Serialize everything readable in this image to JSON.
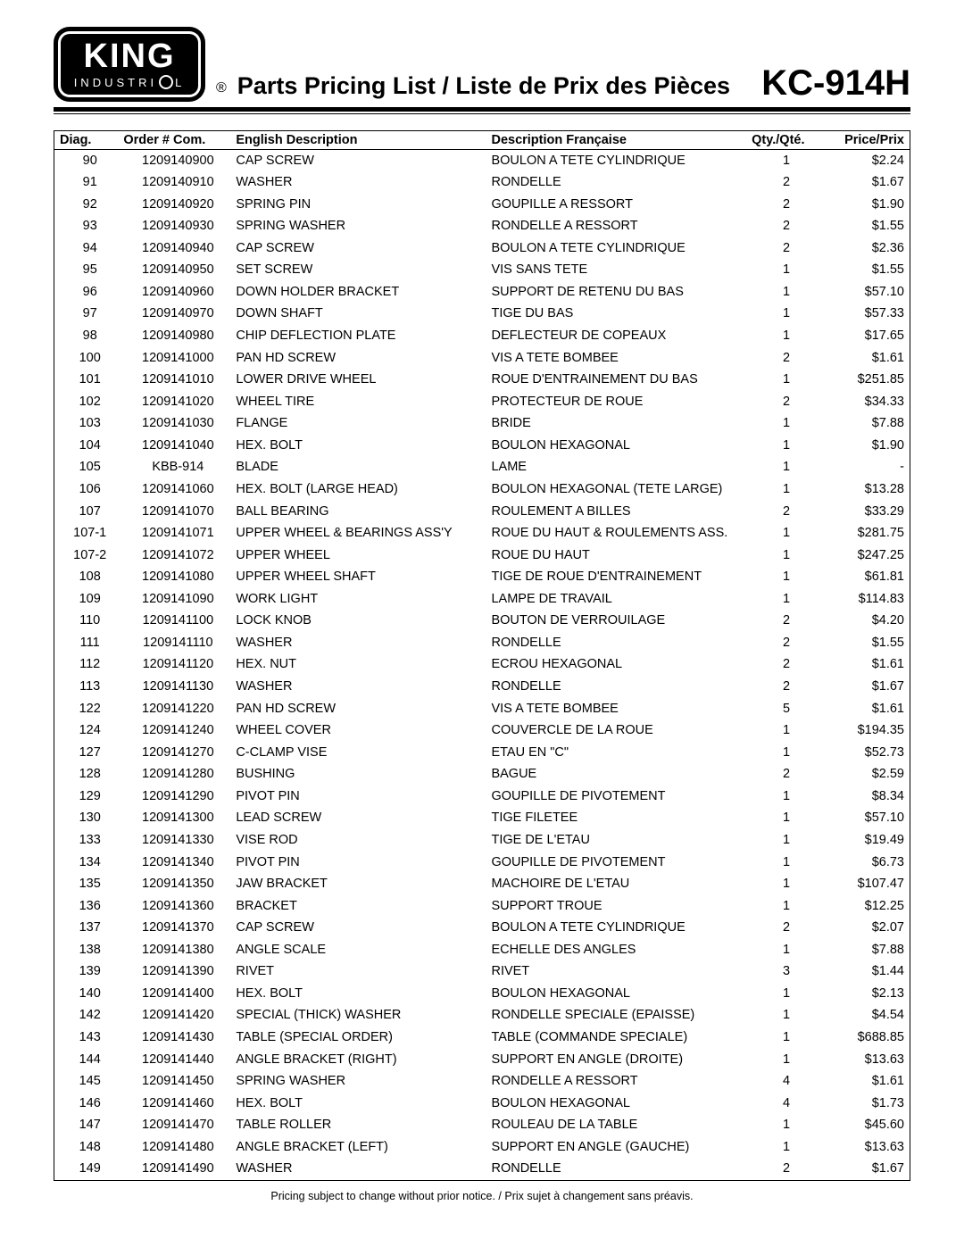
{
  "logo": {
    "main": "KING",
    "sub_left": "INDUSTRI",
    "sub_right": "L"
  },
  "reg": "®",
  "title": "Parts Pricing List / Liste de Prix des Pièces",
  "model": "KC-914H",
  "columns": {
    "diag": "Diag.",
    "order": "Order # Com.",
    "eng": "English Description",
    "fr": "Description Française",
    "qty": "Qty./Qté.",
    "price": "Price/Prix"
  },
  "rows": [
    {
      "diag": "90",
      "order": "1209140900",
      "eng": "CAP SCREW",
      "fr": "BOULON A TETE CYLINDRIQUE",
      "qty": "1",
      "price": "$2.24"
    },
    {
      "diag": "91",
      "order": "1209140910",
      "eng": "WASHER",
      "fr": "RONDELLE",
      "qty": "2",
      "price": "$1.67"
    },
    {
      "diag": "92",
      "order": "1209140920",
      "eng": "SPRING PIN",
      "fr": "GOUPILLE A RESSORT",
      "qty": "2",
      "price": "$1.90"
    },
    {
      "diag": "93",
      "order": "1209140930",
      "eng": "SPRING WASHER",
      "fr": "RONDELLE A RESSORT",
      "qty": "2",
      "price": "$1.55"
    },
    {
      "diag": "94",
      "order": "1209140940",
      "eng": "CAP SCREW",
      "fr": "BOULON A TETE CYLINDRIQUE",
      "qty": "2",
      "price": "$2.36"
    },
    {
      "diag": "95",
      "order": "1209140950",
      "eng": "SET SCREW",
      "fr": "VIS SANS TETE",
      "qty": "1",
      "price": "$1.55"
    },
    {
      "diag": "96",
      "order": "1209140960",
      "eng": "DOWN HOLDER BRACKET",
      "fr": "SUPPORT DE RETENU DU BAS",
      "qty": "1",
      "price": "$57.10"
    },
    {
      "diag": "97",
      "order": "1209140970",
      "eng": "DOWN SHAFT",
      "fr": "TIGE DU BAS",
      "qty": "1",
      "price": "$57.33"
    },
    {
      "diag": "98",
      "order": "1209140980",
      "eng": "CHIP DEFLECTION PLATE",
      "fr": "DEFLECTEUR DE COPEAUX",
      "qty": "1",
      "price": "$17.65"
    },
    {
      "diag": "100",
      "order": "1209141000",
      "eng": "PAN HD SCREW",
      "fr": "VIS A TETE BOMBEE",
      "qty": "2",
      "price": "$1.61"
    },
    {
      "diag": "101",
      "order": "1209141010",
      "eng": "LOWER DRIVE WHEEL",
      "fr": "ROUE D'ENTRAINEMENT DU BAS",
      "qty": "1",
      "price": "$251.85"
    },
    {
      "diag": "102",
      "order": "1209141020",
      "eng": "WHEEL TIRE",
      "fr": "PROTECTEUR DE ROUE",
      "qty": "2",
      "price": "$34.33"
    },
    {
      "diag": "103",
      "order": "1209141030",
      "eng": "FLANGE",
      "fr": "BRIDE",
      "qty": "1",
      "price": "$7.88"
    },
    {
      "diag": "104",
      "order": "1209141040",
      "eng": "HEX. BOLT",
      "fr": "BOULON HEXAGONAL",
      "qty": "1",
      "price": "$1.90"
    },
    {
      "diag": "105",
      "order": "KBB-914",
      "eng": "BLADE",
      "fr": "LAME",
      "qty": "1",
      "price": "-"
    },
    {
      "diag": "106",
      "order": "1209141060",
      "eng": "HEX. BOLT (LARGE HEAD)",
      "fr": "BOULON HEXAGONAL (TETE LARGE)",
      "qty": "1",
      "price": "$13.28"
    },
    {
      "diag": "107",
      "order": "1209141070",
      "eng": "BALL BEARING",
      "fr": "ROULEMENT A BILLES",
      "qty": "2",
      "price": "$33.29"
    },
    {
      "diag": "107-1",
      "order": "1209141071",
      "eng": "UPPER WHEEL & BEARINGS ASS'Y",
      "fr": "ROUE DU HAUT & ROULEMENTS ASS.",
      "qty": "1",
      "price": "$281.75"
    },
    {
      "diag": "107-2",
      "order": "1209141072",
      "eng": "UPPER WHEEL",
      "fr": "ROUE DU HAUT",
      "qty": "1",
      "price": "$247.25"
    },
    {
      "diag": "108",
      "order": "1209141080",
      "eng": "UPPER WHEEL SHAFT",
      "fr": "TIGE DE ROUE D'ENTRAINEMENT",
      "qty": "1",
      "price": "$61.81"
    },
    {
      "diag": "109",
      "order": "1209141090",
      "eng": "WORK LIGHT",
      "fr": "LAMPE DE TRAVAIL",
      "qty": "1",
      "price": "$114.83"
    },
    {
      "diag": "110",
      "order": "1209141100",
      "eng": "LOCK KNOB",
      "fr": "BOUTON DE VERROUILAGE",
      "qty": "2",
      "price": "$4.20"
    },
    {
      "diag": "111",
      "order": "1209141110",
      "eng": "WASHER",
      "fr": "RONDELLE",
      "qty": "2",
      "price": "$1.55"
    },
    {
      "diag": "112",
      "order": "1209141120",
      "eng": "HEX. NUT",
      "fr": "ECROU HEXAGONAL",
      "qty": "2",
      "price": "$1.61"
    },
    {
      "diag": "113",
      "order": "1209141130",
      "eng": "WASHER",
      "fr": "RONDELLE",
      "qty": "2",
      "price": "$1.67"
    },
    {
      "diag": "122",
      "order": "1209141220",
      "eng": "PAN HD SCREW",
      "fr": "VIS A TETE BOMBEE",
      "qty": "5",
      "price": "$1.61"
    },
    {
      "diag": "124",
      "order": "1209141240",
      "eng": "WHEEL COVER",
      "fr": "COUVERCLE DE LA ROUE",
      "qty": "1",
      "price": "$194.35"
    },
    {
      "diag": "127",
      "order": "1209141270",
      "eng": "C-CLAMP VISE",
      "fr": "ETAU EN \"C\"",
      "qty": "1",
      "price": "$52.73"
    },
    {
      "diag": "128",
      "order": "1209141280",
      "eng": "BUSHING",
      "fr": "BAGUE",
      "qty": "2",
      "price": "$2.59"
    },
    {
      "diag": "129",
      "order": "1209141290",
      "eng": "PIVOT PIN",
      "fr": "GOUPILLE DE PIVOTEMENT",
      "qty": "1",
      "price": "$8.34"
    },
    {
      "diag": "130",
      "order": "1209141300",
      "eng": "LEAD SCREW",
      "fr": "TIGE FILETEE",
      "qty": "1",
      "price": "$57.10"
    },
    {
      "diag": "133",
      "order": "1209141330",
      "eng": "VISE ROD",
      "fr": "TIGE DE L'ETAU",
      "qty": "1",
      "price": "$19.49"
    },
    {
      "diag": "134",
      "order": "1209141340",
      "eng": "PIVOT PIN",
      "fr": "GOUPILLE DE PIVOTEMENT",
      "qty": "1",
      "price": "$6.73"
    },
    {
      "diag": "135",
      "order": "1209141350",
      "eng": "JAW BRACKET",
      "fr": "MACHOIRE DE L'ETAU",
      "qty": "1",
      "price": "$107.47"
    },
    {
      "diag": "136",
      "order": "1209141360",
      "eng": "BRACKET",
      "fr": "SUPPORT TROUE",
      "qty": "1",
      "price": "$12.25"
    },
    {
      "diag": "137",
      "order": "1209141370",
      "eng": "CAP SCREW",
      "fr": "BOULON A TETE CYLINDRIQUE",
      "qty": "2",
      "price": "$2.07"
    },
    {
      "diag": "138",
      "order": "1209141380",
      "eng": "ANGLE SCALE",
      "fr": "ECHELLE DES ANGLES",
      "qty": "1",
      "price": "$7.88"
    },
    {
      "diag": "139",
      "order": "1209141390",
      "eng": "RIVET",
      "fr": "RIVET",
      "qty": "3",
      "price": "$1.44"
    },
    {
      "diag": "140",
      "order": "1209141400",
      "eng": "HEX. BOLT",
      "fr": "BOULON HEXAGONAL",
      "qty": "1",
      "price": "$2.13"
    },
    {
      "diag": "142",
      "order": "1209141420",
      "eng": "SPECIAL (THICK) WASHER",
      "fr": "RONDELLE SPECIALE (EPAISSE)",
      "qty": "1",
      "price": "$4.54"
    },
    {
      "diag": "143",
      "order": "1209141430",
      "eng": "TABLE (SPECIAL ORDER)",
      "fr": "TABLE (COMMANDE SPECIALE)",
      "qty": "1",
      "price": "$688.85"
    },
    {
      "diag": "144",
      "order": "1209141440",
      "eng": "ANGLE BRACKET (RIGHT)",
      "fr": "SUPPORT EN ANGLE (DROITE)",
      "qty": "1",
      "price": "$13.63"
    },
    {
      "diag": "145",
      "order": "1209141450",
      "eng": "SPRING WASHER",
      "fr": "RONDELLE A RESSORT",
      "qty": "4",
      "price": "$1.61"
    },
    {
      "diag": "146",
      "order": "1209141460",
      "eng": "HEX. BOLT",
      "fr": "BOULON HEXAGONAL",
      "qty": "4",
      "price": "$1.73"
    },
    {
      "diag": "147",
      "order": "1209141470",
      "eng": "TABLE ROLLER",
      "fr": "ROULEAU DE LA TABLE",
      "qty": "1",
      "price": "$45.60"
    },
    {
      "diag": "148",
      "order": "1209141480",
      "eng": "ANGLE BRACKET (LEFT)",
      "fr": "SUPPORT EN ANGLE (GAUCHE)",
      "qty": "1",
      "price": "$13.63"
    },
    {
      "diag": "149",
      "order": "1209141490",
      "eng": "WASHER",
      "fr": "RONDELLE",
      "qty": "2",
      "price": "$1.67"
    }
  ],
  "footer": "Pricing subject to change without prior notice. / Prix sujet à changement sans préavis."
}
